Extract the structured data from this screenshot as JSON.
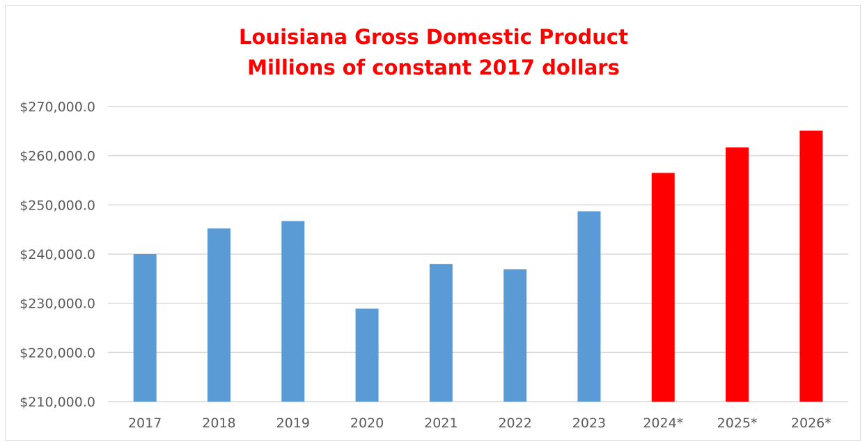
{
  "chart_data": {
    "type": "bar",
    "title": [
      "Louisiana Gross Domestic Product",
      "Millions of constant 2017 dollars"
    ],
    "xlabel": "",
    "ylabel": "",
    "categories": [
      "2017",
      "2018",
      "2019",
      "2020",
      "2021",
      "2022",
      "2023",
      "2024*",
      "2025*",
      "2026*"
    ],
    "values": [
      240000,
      245200,
      246700,
      228900,
      238000,
      236900,
      248700,
      256500,
      261700,
      265100
    ],
    "bar_colors": [
      "#5b9bd5",
      "#5b9bd5",
      "#5b9bd5",
      "#5b9bd5",
      "#5b9bd5",
      "#5b9bd5",
      "#5b9bd5",
      "#ff0000",
      "#ff0000",
      "#ff0000"
    ],
    "ylim": [
      210000,
      270000
    ],
    "yticks": [
      210000,
      220000,
      230000,
      240000,
      250000,
      260000,
      270000
    ],
    "ytick_labels": [
      "$210,000.0",
      "$220,000.0",
      "$230,000.0",
      "$240,000.0",
      "$250,000.0",
      "$260,000.0",
      "$270,000.0"
    ],
    "grid": true,
    "legend": "none",
    "colors": {
      "actual": "#5b9bd5",
      "forecast": "#ff0000",
      "title": "#ff0000",
      "grid": "#d9d9d9",
      "text": "#595959"
    }
  }
}
